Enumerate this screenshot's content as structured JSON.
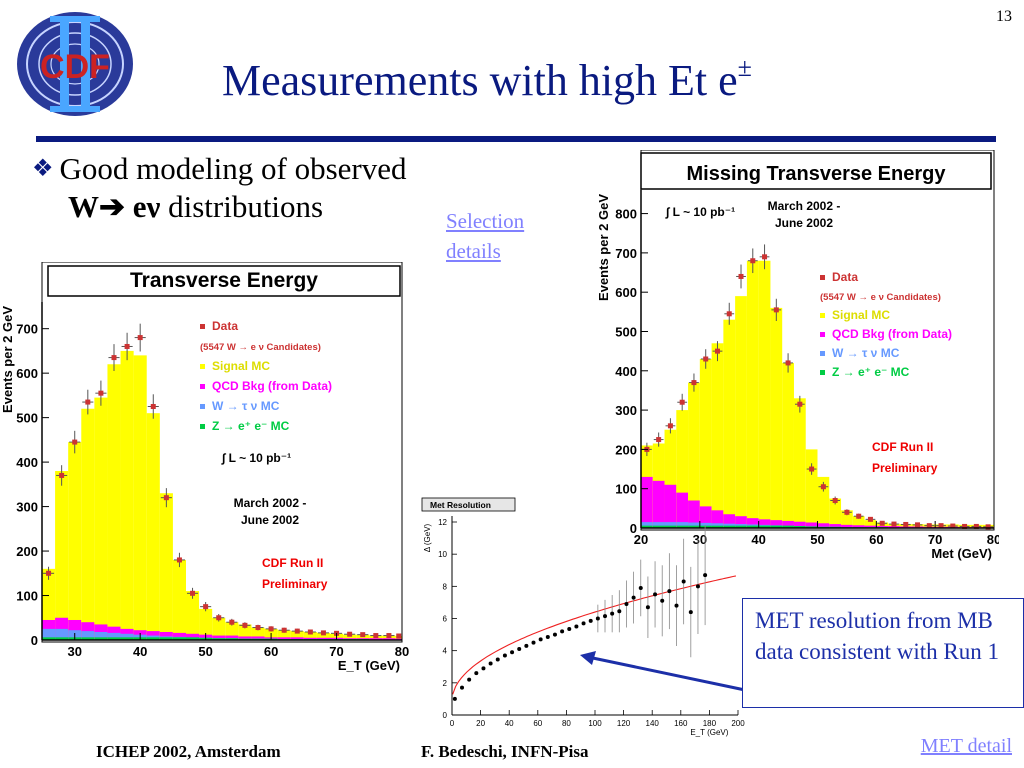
{
  "slide_number": "13",
  "logo_text": "CDF",
  "title": "Measurements with high Et e",
  "title_sup": "±",
  "bullet": {
    "line1": "Good modeling of observed",
    "line2_bold": "W",
    "line2_arrow": "➔",
    "line2_bold2": " eν",
    "line2_rest": " distributions"
  },
  "selection_link": "Selection details",
  "met_detail_link": "MET detail",
  "footer": {
    "left": "ICHEP 2002, Amsterdam",
    "center": "F. Bedeschi, INFN-Pisa"
  },
  "callout": "MET resolution from MB data consistent with Run 1",
  "colors": {
    "title": "#0a1a80",
    "signal": "#ffff00",
    "qcd": "#ff00ff",
    "wtau": "#6699ff",
    "z": "#00cc44",
    "data": "#cc3333"
  },
  "chart_data": [
    {
      "type": "bar",
      "title": "Transverse Energy",
      "xlabel": "E_T (GeV)",
      "ylabel": "Events per 2 GeV",
      "xlim": [
        25,
        80
      ],
      "ylim": [
        0,
        760
      ],
      "x_ticks": [
        "30",
        "40",
        "50",
        "60",
        "70",
        "80"
      ],
      "y_ticks": [
        "0",
        "100",
        "200",
        "300",
        "400",
        "500",
        "600",
        "700"
      ],
      "bin_edges": [
        25,
        27,
        29,
        31,
        33,
        35,
        37,
        39,
        41,
        43,
        45,
        47,
        49,
        51,
        53,
        55,
        57,
        59,
        61,
        63,
        65,
        67,
        69,
        71,
        73,
        75,
        77,
        79,
        81
      ],
      "stack": [
        {
          "name": "Signal MC",
          "values": [
            160,
            380,
            445,
            520,
            545,
            620,
            650,
            640,
            510,
            330,
            180,
            110,
            70,
            50,
            40,
            35,
            28,
            25,
            22,
            20,
            18,
            16,
            14,
            12,
            12,
            10,
            10,
            8
          ]
        },
        {
          "name": "QCD Bkg (from Data)",
          "values": [
            45,
            50,
            45,
            40,
            35,
            30,
            25,
            22,
            20,
            18,
            16,
            14,
            12,
            10,
            10,
            8,
            8,
            6,
            6,
            6,
            5,
            5,
            5,
            4,
            4,
            4,
            4,
            3
          ]
        },
        {
          "name": "W → τ ν MC",
          "values": [
            25,
            25,
            22,
            20,
            18,
            16,
            14,
            12,
            10,
            8,
            7,
            6,
            5,
            4,
            4,
            3,
            3,
            3,
            2,
            2,
            2,
            2,
            2,
            2,
            2,
            1,
            1,
            1
          ]
        }
      ],
      "data_points": [
        150,
        370,
        445,
        535,
        555,
        635,
        660,
        680,
        525,
        320,
        180,
        105,
        75,
        50,
        40,
        33,
        28,
        25,
        22,
        20,
        18,
        16,
        15,
        13,
        12,
        10,
        10,
        9
      ],
      "legend": [
        "Data",
        "(5547 W → e ν Candidates)",
        "Signal MC",
        "QCD Bkg (from Data)",
        "W → τ ν MC",
        "Z → e⁺ e⁻ MC"
      ],
      "annotations": [
        "∫ L ~ 10 pb⁻¹",
        "March 2002 -",
        "June 2002",
        "CDF Run II",
        "Preliminary"
      ]
    },
    {
      "type": "bar",
      "title": "Missing Transverse Energy",
      "xlabel": "Met (GeV)",
      "ylabel": "Events per 2 GeV",
      "xlim": [
        20,
        80
      ],
      "ylim": [
        0,
        860
      ],
      "x_ticks": [
        "20",
        "30",
        "40",
        "50",
        "60",
        "70",
        "80"
      ],
      "y_ticks": [
        "0",
        "100",
        "200",
        "300",
        "400",
        "500",
        "600",
        "700",
        "800"
      ],
      "bin_edges": [
        20,
        22,
        24,
        26,
        28,
        30,
        32,
        34,
        36,
        38,
        40,
        42,
        44,
        46,
        48,
        50,
        52,
        54,
        56,
        58,
        60,
        62,
        64,
        66,
        68,
        70,
        72,
        74,
        76,
        78,
        80
      ],
      "stack": [
        {
          "name": "Signal MC",
          "values": [
            210,
            215,
            250,
            300,
            370,
            430,
            470,
            530,
            590,
            680,
            680,
            560,
            420,
            330,
            200,
            130,
            75,
            45,
            30,
            20,
            14,
            10,
            8,
            6,
            5,
            4,
            3,
            3,
            2,
            2
          ]
        },
        {
          "name": "QCD Bkg (from Data)",
          "values": [
            130,
            120,
            110,
            90,
            70,
            55,
            45,
            35,
            30,
            25,
            22,
            20,
            18,
            16,
            14,
            12,
            10,
            8,
            7,
            6,
            5,
            5,
            4,
            4,
            3,
            3,
            3,
            2,
            2,
            2
          ]
        },
        {
          "name": "W → τ ν MC",
          "values": [
            15,
            15,
            15,
            15,
            14,
            13,
            12,
            11,
            10,
            9,
            8,
            7,
            6,
            5,
            4,
            3,
            3,
            2,
            2,
            2,
            2,
            1,
            1,
            1,
            1,
            1,
            1,
            1,
            1,
            1
          ]
        }
      ],
      "data_points": [
        200,
        225,
        260,
        320,
        370,
        430,
        450,
        545,
        640,
        680,
        690,
        555,
        420,
        315,
        150,
        105,
        70,
        40,
        30,
        22,
        12,
        10,
        9,
        8,
        6,
        6,
        5,
        4,
        4,
        3
      ],
      "legend": [
        "Data",
        "(5547 W → e ν Candidates)",
        "Signal MC",
        "QCD Bkg (from Data)",
        "W → τ ν MC",
        "Z → e⁺ e⁻ MC"
      ],
      "annotations": [
        "∫ L ~ 10 pb⁻¹",
        "March 2002 -",
        "June 2002",
        "CDF Run II",
        "Preliminary"
      ]
    },
    {
      "type": "scatter",
      "title": "Met Resolution",
      "xlabel": "E_T (GeV)",
      "ylabel": "Δ (GeV)",
      "xlim": [
        0,
        200
      ],
      "ylim": [
        0,
        12
      ],
      "x_ticks": [
        "0",
        "20",
        "40",
        "60",
        "80",
        "100",
        "120",
        "140",
        "160",
        "180",
        "200"
      ],
      "y_ticks": [
        "0",
        "2",
        "4",
        "6",
        "8",
        "10",
        "12"
      ],
      "x": [
        2,
        7,
        12,
        17,
        22,
        27,
        32,
        37,
        42,
        47,
        52,
        57,
        62,
        67,
        72,
        77,
        82,
        87,
        92,
        97,
        102,
        107,
        112,
        117,
        122,
        127,
        132,
        137,
        142,
        147,
        152,
        157,
        162,
        167,
        172,
        177
      ],
      "y": [
        1.0,
        1.7,
        2.2,
        2.6,
        2.9,
        3.2,
        3.45,
        3.7,
        3.9,
        4.1,
        4.3,
        4.5,
        4.7,
        4.85,
        5.0,
        5.2,
        5.35,
        5.5,
        5.7,
        5.85,
        6.0,
        6.15,
        6.3,
        6.45,
        6.9,
        7.3,
        7.9,
        6.7,
        7.5,
        7.1,
        7.7,
        6.8,
        8.3,
        6.4,
        8.0,
        8.7
      ],
      "fit": "sqrt"
    }
  ]
}
